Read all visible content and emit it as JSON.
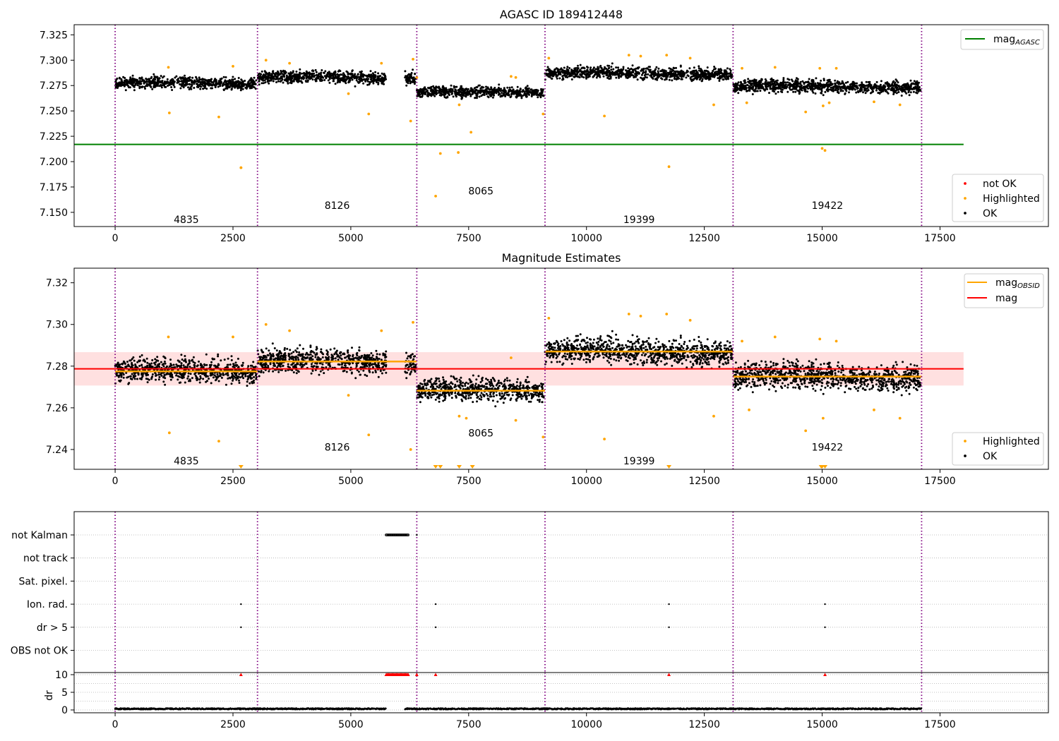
{
  "chart_data": [
    {
      "type": "scatter",
      "title": "AGASC ID 189412448",
      "xlim": [
        -870,
        19800
      ],
      "ylim": [
        7.136,
        7.335
      ],
      "xticks": [
        0,
        2500,
        5000,
        7500,
        10000,
        12500,
        15000,
        17500
      ],
      "xtick_labels": [
        "0",
        "2500",
        "5000",
        "7500",
        "10000",
        "12500",
        "15000",
        "17500"
      ],
      "yticks": [
        7.15,
        7.175,
        7.2,
        7.225,
        7.25,
        7.275,
        7.3,
        7.325
      ],
      "ytick_labels": [
        "7.150",
        "7.175",
        "7.200",
        "7.225",
        "7.250",
        "7.275",
        "7.300",
        "7.325"
      ],
      "reference_line": {
        "name": "mag_AGASC",
        "y": 7.217,
        "x": [
          -870,
          18000
        ],
        "color": "#008000"
      },
      "segments": [
        {
          "obsid": "4835",
          "x": [
            0,
            3020
          ],
          "mean": 7.277,
          "spread": 0.004,
          "label_y": 7.143
        },
        {
          "obsid": "8126",
          "x": [
            3020,
            6400
          ],
          "mean": 7.283,
          "spread": 0.0042,
          "label_y": 7.157,
          "gap": [
            5750,
            6150
          ]
        },
        {
          "obsid": "8065",
          "x": [
            6400,
            9120
          ],
          "mean": 7.268,
          "spread": 0.0038,
          "label_y": 7.171
        },
        {
          "obsid": "19399",
          "x": [
            9120,
            13110
          ],
          "mean": 7.287,
          "spread": 0.0042,
          "label_y": 7.143
        },
        {
          "obsid": "19422",
          "x": [
            13110,
            17110
          ],
          "mean": 7.274,
          "spread": 0.0045,
          "label_y": 7.157
        }
      ],
      "highlighted_points": [
        {
          "x": 1130,
          "y": 7.293
        },
        {
          "x": 1150,
          "y": 7.248
        },
        {
          "x": 2200,
          "y": 7.244
        },
        {
          "x": 2500,
          "y": 7.294
        },
        {
          "x": 2670,
          "y": 7.194
        },
        {
          "x": 3200,
          "y": 7.3
        },
        {
          "x": 3700,
          "y": 7.297
        },
        {
          "x": 4950,
          "y": 7.267
        },
        {
          "x": 5380,
          "y": 7.247
        },
        {
          "x": 5650,
          "y": 7.297
        },
        {
          "x": 6270,
          "y": 7.24
        },
        {
          "x": 6320,
          "y": 7.301
        },
        {
          "x": 6400,
          "y": 7.283
        },
        {
          "x": 6800,
          "y": 7.166
        },
        {
          "x": 6900,
          "y": 7.208
        },
        {
          "x": 7280,
          "y": 7.209
        },
        {
          "x": 7300,
          "y": 7.256
        },
        {
          "x": 7550,
          "y": 7.229
        },
        {
          "x": 8400,
          "y": 7.284
        },
        {
          "x": 8500,
          "y": 7.283
        },
        {
          "x": 9080,
          "y": 7.247
        },
        {
          "x": 9200,
          "y": 7.302
        },
        {
          "x": 10380,
          "y": 7.245
        },
        {
          "x": 10900,
          "y": 7.305
        },
        {
          "x": 11150,
          "y": 7.304
        },
        {
          "x": 11700,
          "y": 7.305
        },
        {
          "x": 11750,
          "y": 7.195
        },
        {
          "x": 12200,
          "y": 7.302
        },
        {
          "x": 12700,
          "y": 7.256
        },
        {
          "x": 13300,
          "y": 7.292
        },
        {
          "x": 13400,
          "y": 7.258
        },
        {
          "x": 14000,
          "y": 7.293
        },
        {
          "x": 14650,
          "y": 7.249
        },
        {
          "x": 14950,
          "y": 7.292
        },
        {
          "x": 15000,
          "y": 7.213
        },
        {
          "x": 15020,
          "y": 7.255
        },
        {
          "x": 15060,
          "y": 7.211
        },
        {
          "x": 15150,
          "y": 7.258
        },
        {
          "x": 15300,
          "y": 7.292
        },
        {
          "x": 16100,
          "y": 7.259
        },
        {
          "x": 16650,
          "y": 7.256
        }
      ],
      "not_ok_points": [
        {
          "x": 2670,
          "y": 7.194
        }
      ],
      "obsid_boundaries": [
        0,
        3020,
        6400,
        9120,
        13110,
        17110
      ],
      "legend_top": [
        {
          "label": "mag",
          "sub": "AGASC",
          "color": "#008000"
        }
      ],
      "legend_bottom": [
        {
          "label": "not OK",
          "color": "#ff0000"
        },
        {
          "label": "Highlighted",
          "color": "#ffa500"
        },
        {
          "label": "OK",
          "color": "#000000"
        }
      ]
    },
    {
      "type": "scatter",
      "title": "Magnitude Estimates",
      "xlim": [
        -870,
        19800
      ],
      "ylim": [
        7.2305,
        7.327
      ],
      "xticks": [
        0,
        2500,
        5000,
        7500,
        10000,
        12500,
        15000,
        17500
      ],
      "xtick_labels": [
        "0",
        "2500",
        "5000",
        "7500",
        "10000",
        "12500",
        "15000",
        "17500"
      ],
      "yticks": [
        7.24,
        7.26,
        7.28,
        7.3,
        7.32
      ],
      "ytick_labels": [
        "7.24",
        "7.26",
        "7.28",
        "7.30",
        "7.32"
      ],
      "mag_line": {
        "name": "mag",
        "y": 7.2787,
        "band": [
          7.2707,
          7.2867
        ],
        "x": [
          -870,
          18000
        ],
        "color": "#ff0000"
      },
      "segments": [
        {
          "obsid": "4835",
          "x": [
            0,
            3020
          ],
          "mag_obsid": 7.2775,
          "spread": 0.004,
          "label_y": 7.2345
        },
        {
          "obsid": "8126",
          "x": [
            3020,
            6400
          ],
          "mag_obsid": 7.2822,
          "spread": 0.0042,
          "label_y": 7.2412,
          "gap": [
            5750,
            6150
          ]
        },
        {
          "obsid": "8065",
          "x": [
            6400,
            9120
          ],
          "mag_obsid": 7.2682,
          "spread": 0.0038,
          "label_y": 7.248
        },
        {
          "obsid": "19399",
          "x": [
            9120,
            13110
          ],
          "mag_obsid": 7.287,
          "spread": 0.0042,
          "label_y": 7.2345
        },
        {
          "obsid": "19422",
          "x": [
            13110,
            17110
          ],
          "mag_obsid": 7.275,
          "spread": 0.0045,
          "label_y": 7.2412
        }
      ],
      "highlighted_points": [
        {
          "x": 1130,
          "y": 7.294
        },
        {
          "x": 1150,
          "y": 7.248
        },
        {
          "x": 2200,
          "y": 7.244
        },
        {
          "x": 2500,
          "y": 7.294
        },
        {
          "x": 3200,
          "y": 7.3
        },
        {
          "x": 3700,
          "y": 7.297
        },
        {
          "x": 4950,
          "y": 7.266
        },
        {
          "x": 5380,
          "y": 7.247
        },
        {
          "x": 5650,
          "y": 7.297
        },
        {
          "x": 6270,
          "y": 7.24
        },
        {
          "x": 6320,
          "y": 7.301
        },
        {
          "x": 7300,
          "y": 7.256
        },
        {
          "x": 7450,
          "y": 7.255
        },
        {
          "x": 8400,
          "y": 7.284
        },
        {
          "x": 8500,
          "y": 7.254
        },
        {
          "x": 9080,
          "y": 7.246
        },
        {
          "x": 9200,
          "y": 7.303
        },
        {
          "x": 10380,
          "y": 7.245
        },
        {
          "x": 10900,
          "y": 7.305
        },
        {
          "x": 11150,
          "y": 7.304
        },
        {
          "x": 11700,
          "y": 7.305
        },
        {
          "x": 12200,
          "y": 7.302
        },
        {
          "x": 12700,
          "y": 7.256
        },
        {
          "x": 13300,
          "y": 7.292
        },
        {
          "x": 13450,
          "y": 7.259
        },
        {
          "x": 14000,
          "y": 7.294
        },
        {
          "x": 14650,
          "y": 7.249
        },
        {
          "x": 14950,
          "y": 7.293
        },
        {
          "x": 15020,
          "y": 7.255
        },
        {
          "x": 15300,
          "y": 7.292
        },
        {
          "x": 16100,
          "y": 7.259
        },
        {
          "x": 16650,
          "y": 7.255
        }
      ],
      "out_of_range_markers": [
        2670,
        6800,
        6900,
        7300,
        7580,
        11750,
        14980,
        15000,
        15060
      ],
      "obsid_boundaries": [
        0,
        3020,
        6400,
        9120,
        13110,
        17110
      ],
      "legend_top": [
        {
          "label": "mag",
          "sub": "OBSID",
          "color": "#ffa500"
        },
        {
          "label": "mag",
          "sub": "",
          "color": "#ff0000"
        }
      ],
      "legend_bottom": [
        {
          "label": "Highlighted",
          "color": "#ffa500"
        },
        {
          "label": "OK",
          "color": "#000000"
        }
      ]
    },
    {
      "type": "scatter",
      "xlim": [
        -870,
        19800
      ],
      "flag_categories": [
        "not Kalman",
        "not track",
        "Sat. pixel.",
        "Ion. rad.",
        "dr > 5",
        "OBS not OK"
      ],
      "flags": [
        {
          "category": "not Kalman",
          "ranges": [
            [
              5750,
              6220
            ]
          ],
          "points": [
            6400
          ]
        },
        {
          "category": "not track",
          "ranges": [],
          "points": []
        },
        {
          "category": "Sat. pixel.",
          "ranges": [],
          "points": []
        },
        {
          "category": "Ion. rad.",
          "ranges": [],
          "points": [
            2670,
            6800,
            11750,
            15060
          ]
        },
        {
          "category": "dr > 5",
          "ranges": [],
          "points": [
            2670,
            6800,
            11750,
            15060
          ]
        },
        {
          "category": "OBS not OK",
          "ranges": [],
          "points": []
        }
      ],
      "dr": {
        "ylabel": "dr",
        "ylim": [
          -0.8,
          10.6
        ],
        "yticks": [
          0,
          5,
          10
        ],
        "ytick_labels": [
          "0",
          "5",
          "10"
        ],
        "xticks": [
          0,
          2500,
          5000,
          7500,
          10000,
          12500,
          15000,
          17500
        ],
        "xtick_labels": [
          "0",
          "2500",
          "5000",
          "7500",
          "10000",
          "12500",
          "15000",
          "17500"
        ],
        "baseline_ranges": [
          [
            0,
            5750
          ],
          [
            6150,
            17110
          ]
        ],
        "capped_ranges": [
          [
            5750,
            6220
          ]
        ],
        "capped_points": [
          2670,
          6400,
          6800,
          11750,
          15060
        ],
        "cap_value": 10
      },
      "obsid_boundaries": [
        0,
        3020,
        6400,
        9120,
        13110,
        17110
      ]
    }
  ]
}
